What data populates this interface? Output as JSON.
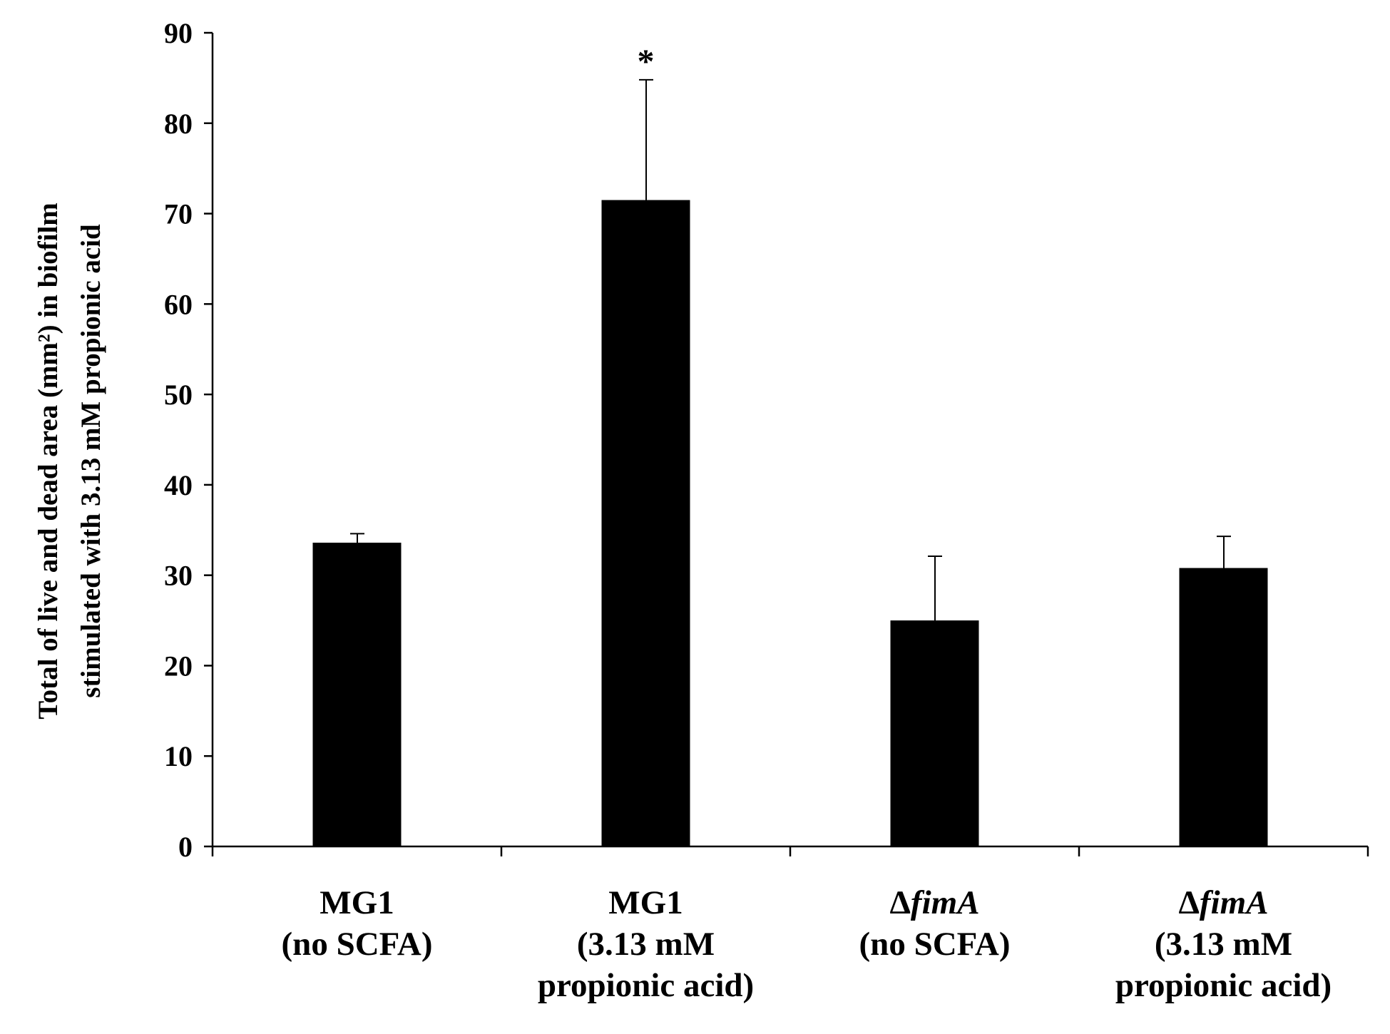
{
  "chart_data": {
    "type": "bar",
    "title": "",
    "xlabel": "",
    "ylabel_lines": [
      "Total of live and dead area (mm²) in biofilm",
      "stimulated with 3.13 mM propionic acid"
    ],
    "ylim": [
      0,
      90
    ],
    "yticks": [
      0,
      10,
      20,
      30,
      40,
      50,
      60,
      70,
      80,
      90
    ],
    "grid": false,
    "categories": [
      {
        "lines": [
          {
            "prefix": "",
            "main": "MG1",
            "italic": false
          },
          {
            "text": "(no SCFA)"
          }
        ]
      },
      {
        "lines": [
          {
            "prefix": "",
            "main": "MG1",
            "italic": false
          },
          {
            "text": "(3.13 mM"
          },
          {
            "text": "propionic  acid)"
          }
        ]
      },
      {
        "lines": [
          {
            "prefix": "Δ",
            "main": "fimA",
            "italic": true
          },
          {
            "text": "(no SCFA)"
          }
        ]
      },
      {
        "lines": [
          {
            "prefix": "Δ",
            "main": "fimA",
            "italic": true
          },
          {
            "text": "(3.13 mM"
          },
          {
            "text": "propionic  acid)"
          }
        ]
      }
    ],
    "values": [
      33.6,
      71.5,
      25.0,
      30.8
    ],
    "errors": [
      1.0,
      13.3,
      7.1,
      3.5
    ],
    "annotations": [
      "",
      "*",
      "",
      ""
    ],
    "bar_color": "#000000"
  }
}
